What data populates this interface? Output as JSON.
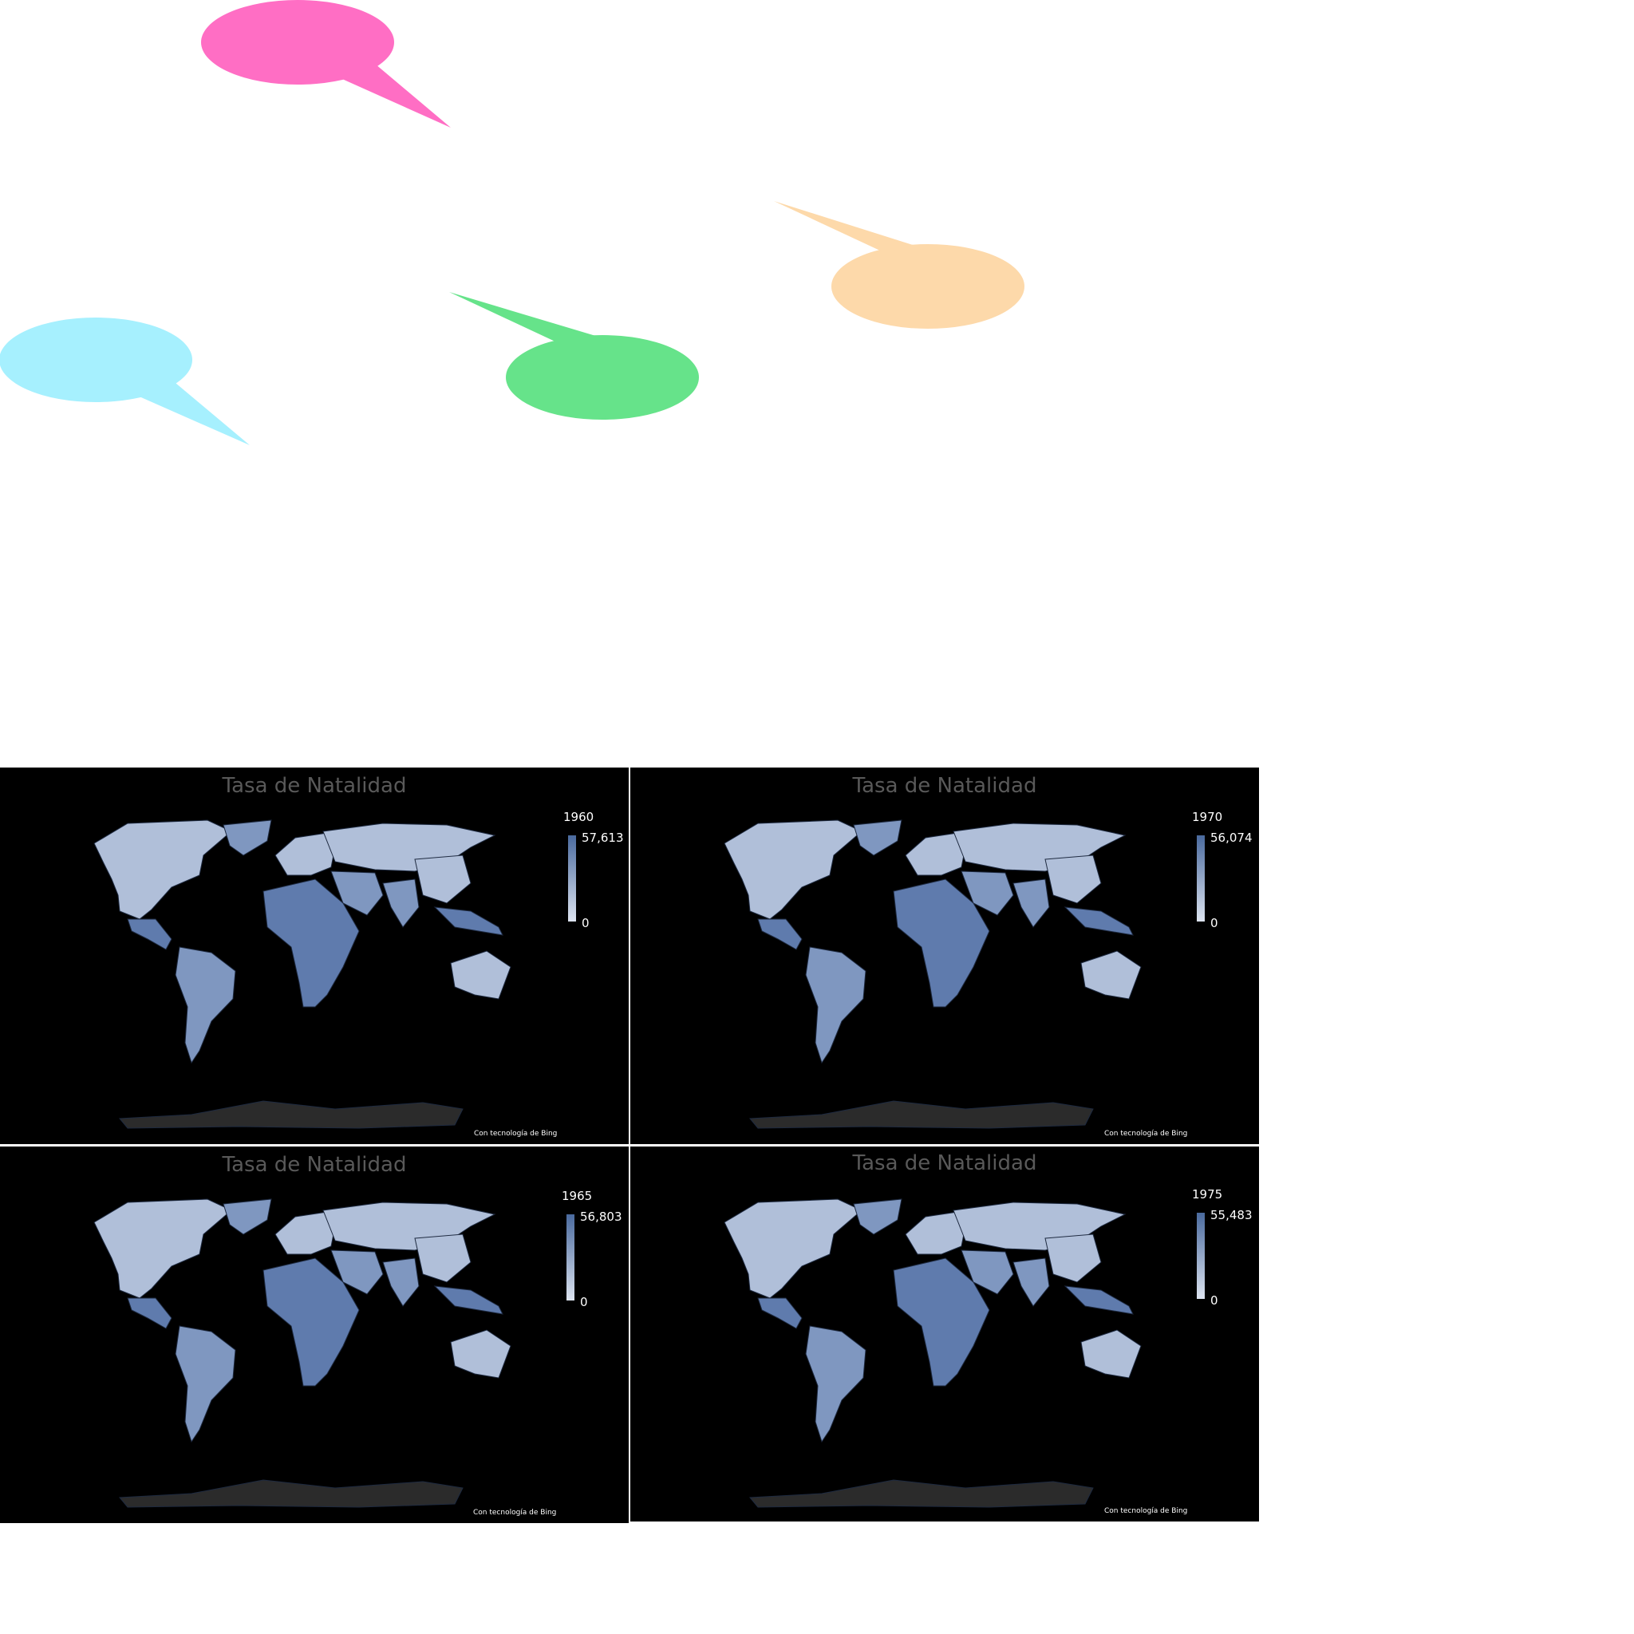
{
  "colors": {
    "bubble_pink": "#ff6ec4",
    "bubble_orange": "#fdd9aa",
    "bubble_cyan": "#a6f0fe",
    "bubble_green": "#66e38a",
    "land_light": "#b0bfd9",
    "land_mid": "#7f97c0",
    "land_dark": "#5f7bad",
    "antarctica": "#2b2b2b",
    "panel_bg": "#000000",
    "title_color": "#595959"
  },
  "chart_data": [
    {
      "type": "choropleth-map",
      "title": "Tasa de Natalidad",
      "year": "1960",
      "legend": {
        "max": "57,613",
        "min": "0"
      },
      "credit": "Con tecnología de Bing"
    },
    {
      "type": "choropleth-map",
      "title": "Tasa de Natalidad",
      "year": "1970",
      "legend": {
        "max": "56,074",
        "min": "0"
      },
      "credit": "Con tecnología de Bing"
    },
    {
      "type": "choropleth-map",
      "title": "Tasa de Natalidad",
      "year": "1965",
      "legend": {
        "max": "56,803",
        "min": "0"
      },
      "credit": "Con tecnología de Bing"
    },
    {
      "type": "choropleth-map",
      "title": "Tasa de Natalidad",
      "year": "1975",
      "legend": {
        "max": "55,483",
        "min": "0"
      },
      "credit": "Con tecnología de Bing"
    }
  ]
}
